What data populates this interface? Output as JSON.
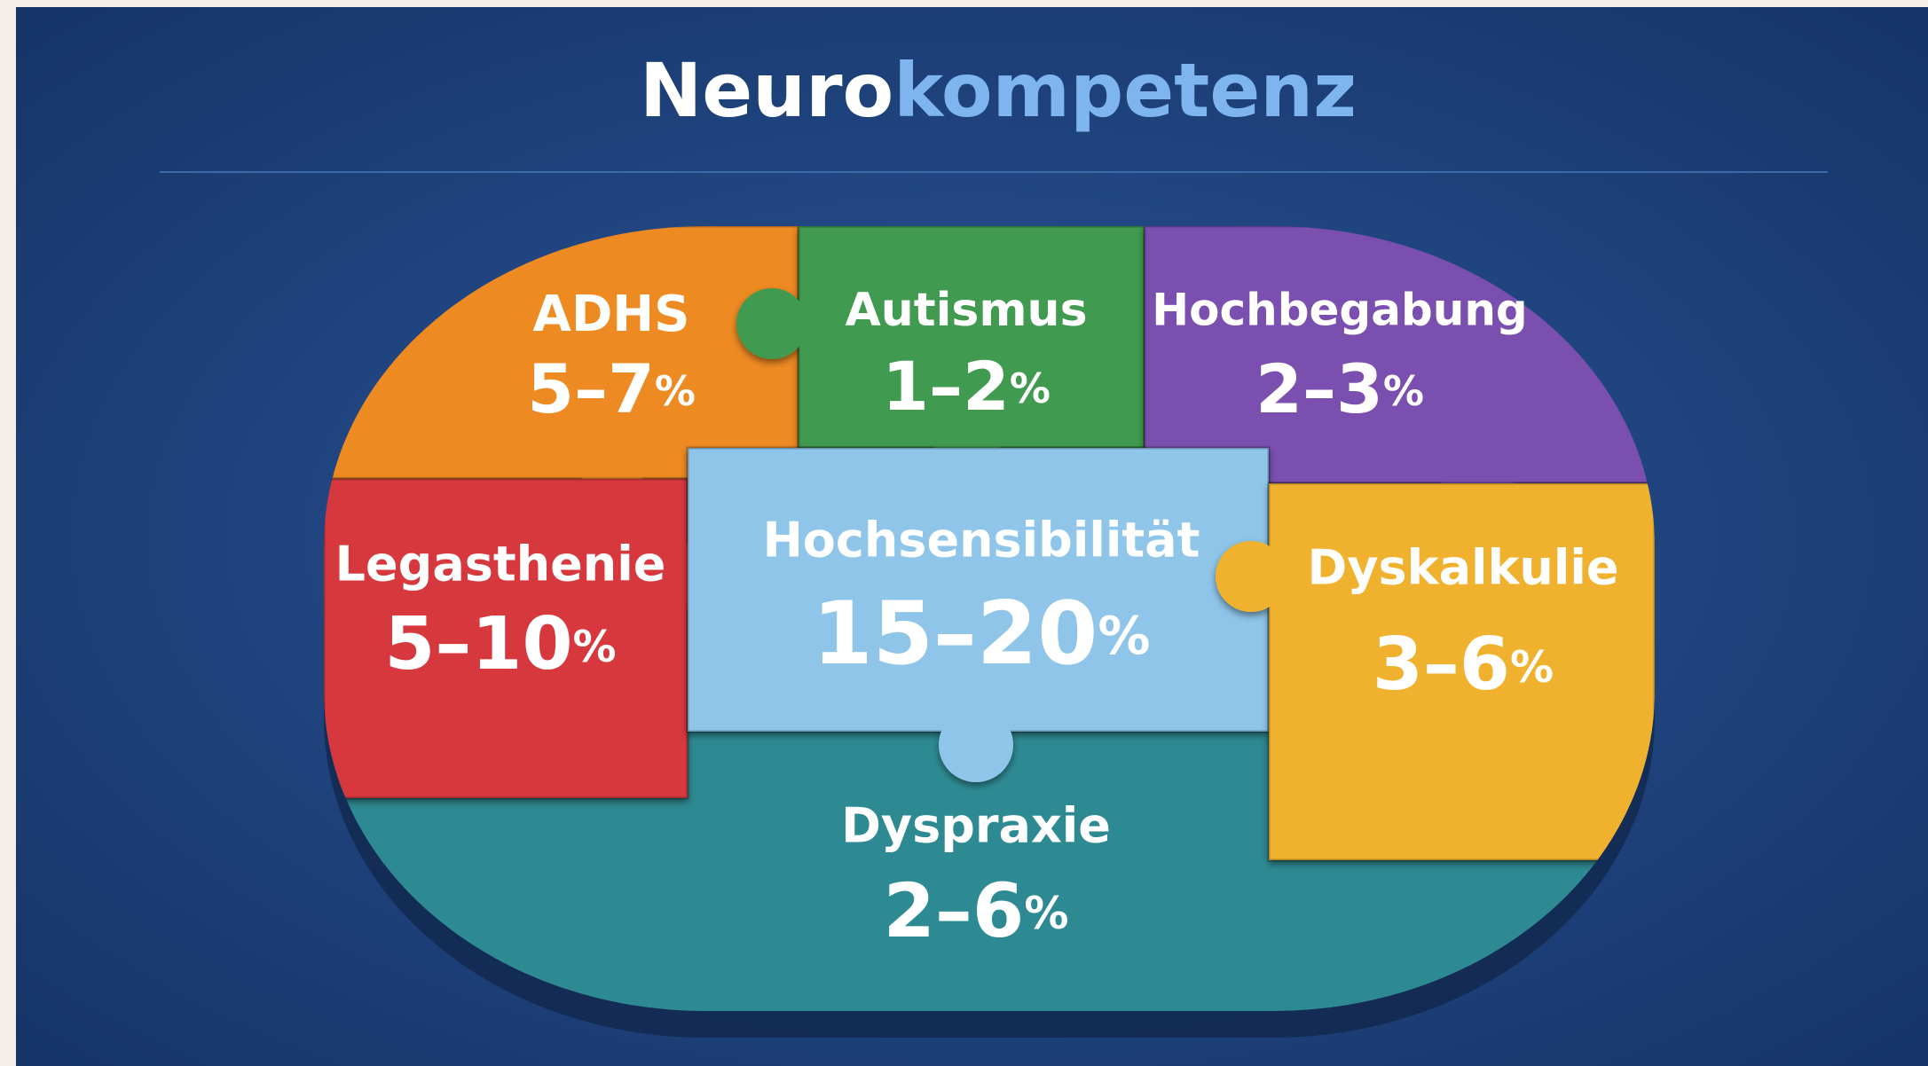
{
  "title": {
    "part1": "Neuro",
    "part2": "kompetenz"
  },
  "pieces": [
    {
      "label": "ADHS",
      "range": "5–7",
      "unit": "%"
    },
    {
      "label": "Autismus",
      "range": "1–2",
      "unit": "%"
    },
    {
      "label": "Hochbegabung",
      "range": "2–3",
      "unit": "%"
    },
    {
      "label": "Legasthenie",
      "range": "5–10",
      "unit": "%"
    },
    {
      "label": "Hochsensibilität",
      "range": "15–20",
      "unit": "%"
    },
    {
      "label": "Dyskalkulie",
      "range": "3–6",
      "unit": "%"
    },
    {
      "label": "Dyspraxie",
      "range": "2–6",
      "unit": "%"
    }
  ]
}
